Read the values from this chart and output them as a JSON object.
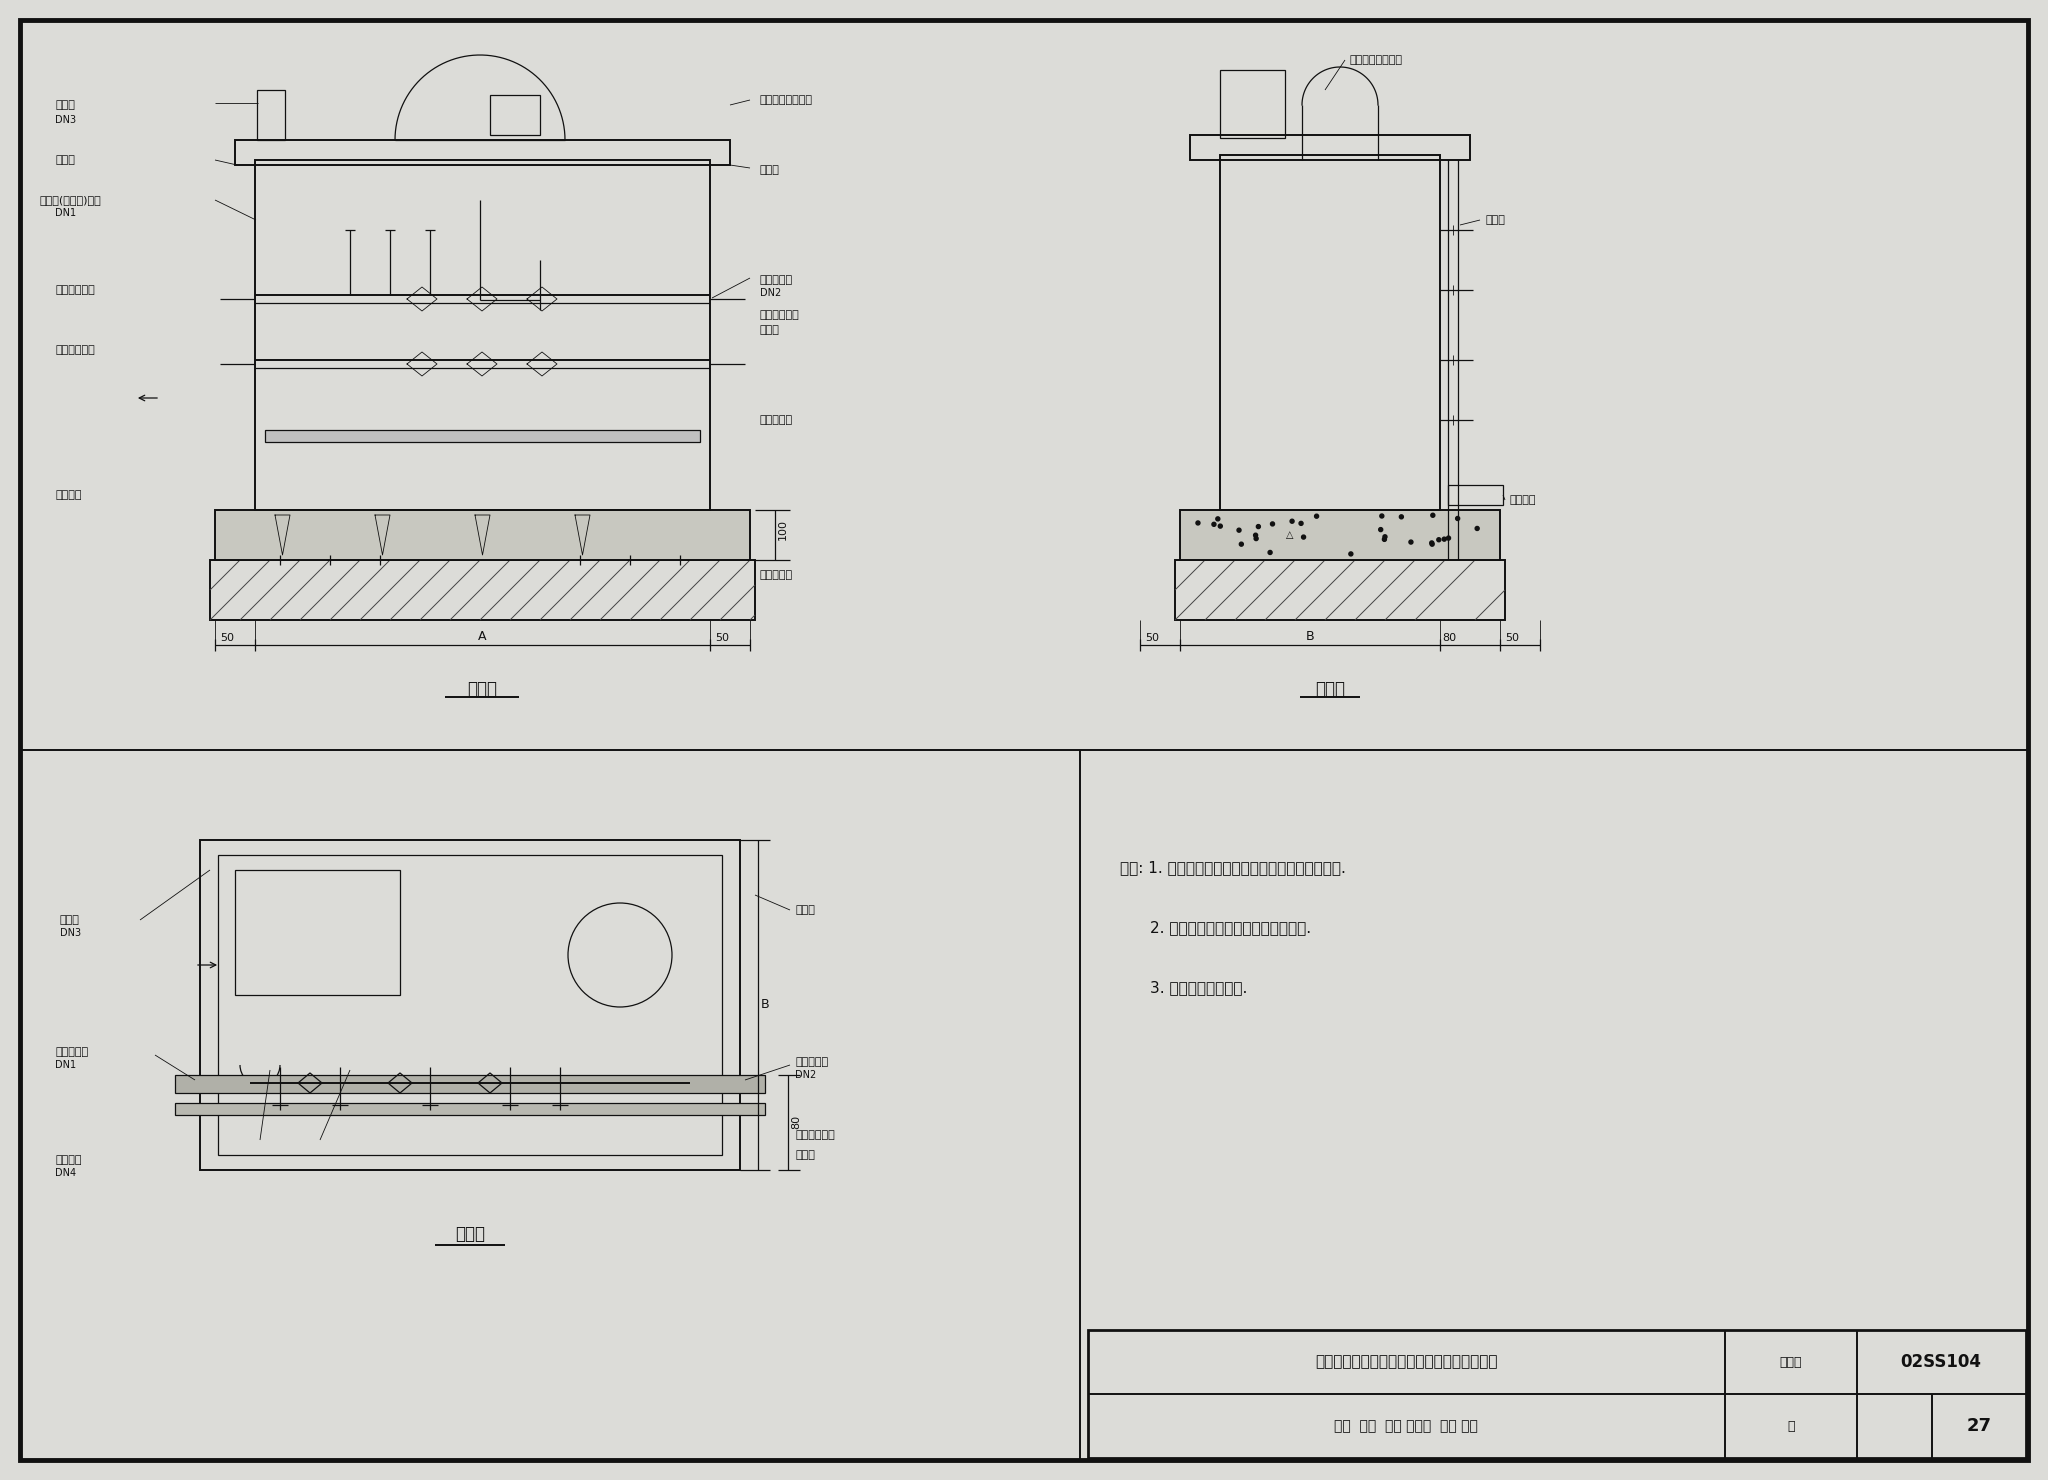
{
  "bg_color": "#e8e8e4",
  "line_color": "#1a1a1a",
  "title_block": {
    "main_text": "电解法二氧化氯复合消毒剂发生器（一体式）",
    "chart_no_label": "图集号",
    "chart_no": "02SS104",
    "approval_row": "审核  东化  校对 孔何马  设计 印彩",
    "page_label": "页",
    "page_no": "27"
  },
  "notes_lines": [
    "说明: 1. 图中未标注尺寸详见有关生产厂家产品样本.",
    "        2. 设备冷却水由自来水进水管上接引.",
    "        3. 发生器另配电控柜."
  ],
  "front_view_title": "立面图",
  "side_view_title": "侧面图",
  "plan_view_title": "平面图"
}
